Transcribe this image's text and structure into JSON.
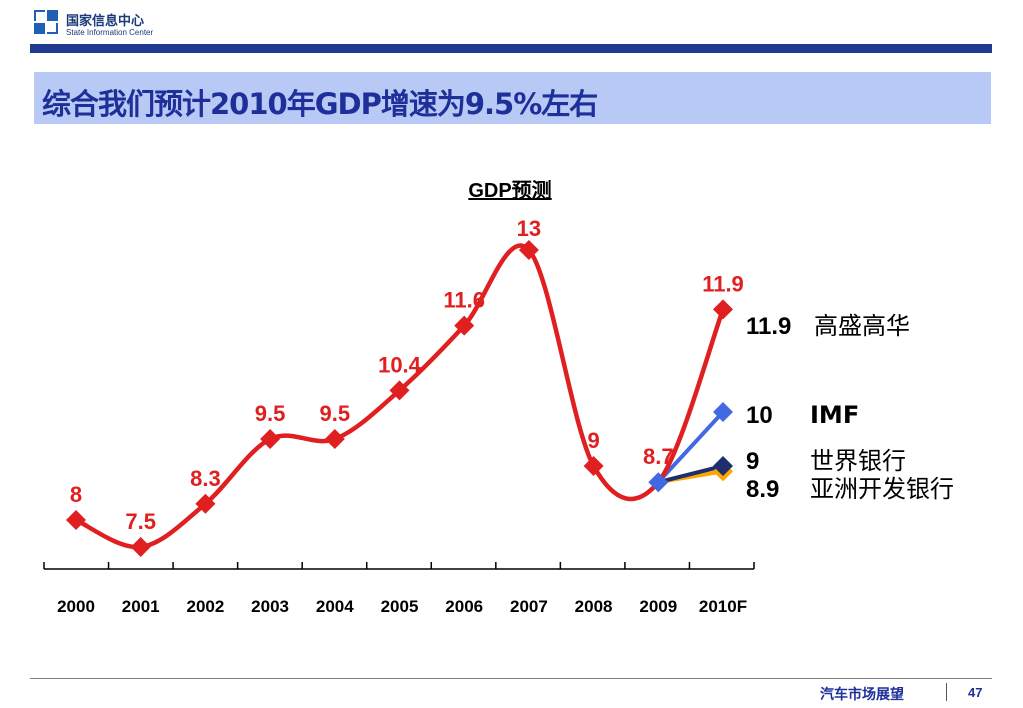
{
  "header": {
    "org_cn": "国家信息中心",
    "org_en": "State Information Center",
    "title": "综合我们预计2010年GDP增速为9.5%左右"
  },
  "footer": {
    "section": "汽车市场展望",
    "page": "47"
  },
  "colors": {
    "main": "#e02020",
    "imf": "#4169e1",
    "worldbank": "#1f2f6e",
    "adb": "#ffa500",
    "title_bg": "#b7c9f4",
    "bar": "#1f3a8f"
  },
  "chart_data": {
    "type": "line",
    "title": "GDP预测",
    "categories": [
      "2000",
      "2001",
      "2002",
      "2003",
      "2004",
      "2005",
      "2006",
      "2007",
      "2008",
      "2009",
      "2010F"
    ],
    "series": [
      {
        "values": [
          8,
          7.5,
          8.3,
          9.5,
          9.5,
          10.4,
          11.6,
          13,
          9,
          8.7,
          11.9
        ],
        "labels": [
          "8",
          "7.5",
          "8.3",
          "9.5",
          "9.5",
          "10.4",
          "11.6",
          "13",
          "9",
          "8.7",
          "11.9"
        ]
      }
    ],
    "forecasts": [
      {
        "value": 11.9,
        "value_text": "11.9",
        "name": "高盛高华",
        "color": "#e02020"
      },
      {
        "value": 10,
        "value_text": "10",
        "name": "IMF",
        "color": "#4169e1"
      },
      {
        "value": 9,
        "value_text": "9",
        "name": "世界银行",
        "color": "#1f2f6e"
      },
      {
        "value": 8.9,
        "value_text": "8.9",
        "name": "亚洲开发银行",
        "color": "#ffa500"
      }
    ],
    "grid": false
  }
}
